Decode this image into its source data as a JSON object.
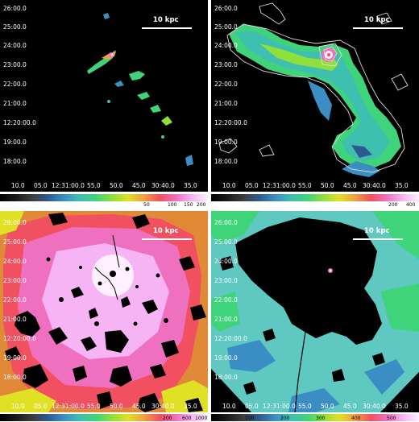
{
  "panels": [
    {
      "id": "tl",
      "scale_label": "10 kpc",
      "y_ticks": [
        "26:00.0",
        "25:00.0",
        "24:00.0",
        "23:00.0",
        "22:00.0",
        "21:00.0",
        "12:20:00.0",
        "19:00.0",
        "18:00.0"
      ],
      "x_ticks": [
        "10.0",
        "05.0",
        "12:31:00.0",
        "55.0",
        "50.0",
        "45.0",
        "30:40.0",
        "35.0"
      ],
      "colorbar_ticks": [
        "50",
        "100",
        "150",
        "200"
      ],
      "colorbar_colors": [
        "#000000",
        "#1a1a1a",
        "#3c3c3c",
        "#2f5a90",
        "#3b8ec4",
        "#3fbfb0",
        "#3fd47a",
        "#8fe03a",
        "#e0e024",
        "#f0a040",
        "#f05060",
        "#f070c0",
        "#f6b4f4",
        "#fff0ff"
      ]
    },
    {
      "id": "tr",
      "scale_label": "10 kpc",
      "y_ticks": [
        "26:00.0",
        "25:00.0",
        "24:00.0",
        "23:00.0",
        "22:00.0",
        "21:00.0",
        "12:20:00.0",
        "19:00.0",
        "18:00.0"
      ],
      "x_ticks": [
        "10.0",
        "05.0",
        "12:31:00.0",
        "55.0",
        "50.0",
        "45.0",
        "30:40.0",
        "35.0"
      ],
      "colorbar_ticks": [
        "200",
        "400"
      ],
      "colorbar_colors": [
        "#000000",
        "#1a1a1a",
        "#3c3c3c",
        "#2f5a90",
        "#3b8ec4",
        "#3fbfb0",
        "#3fd47a",
        "#8fe03a",
        "#e0e024",
        "#f0a040",
        "#f05060",
        "#f070c0",
        "#f6b4f4",
        "#fff0ff"
      ]
    },
    {
      "id": "bl",
      "scale_label": "10 kpc",
      "y_ticks": [
        "26:00.0",
        "25:00.0",
        "24:00.0",
        "23:00.0",
        "22:00.0",
        "21:00.0",
        "12:20:00.0",
        "19:00.0",
        "18:00.0"
      ],
      "x_ticks": [
        "10.0",
        "05.0",
        "12:31:00.0",
        "55.0",
        "50.0",
        "45.0",
        "30:40.0",
        "35.0"
      ],
      "colorbar_ticks": [
        "200",
        "600",
        "1000"
      ],
      "colorbar_colors": [
        "#000000",
        "#1a1a1a",
        "#3c3c3c",
        "#2f5a90",
        "#3b8ec4",
        "#3fbfb0",
        "#3fd47a",
        "#8fe03a",
        "#e0e024",
        "#f0a040",
        "#f05060",
        "#f070c0",
        "#f6b4f4",
        "#fff0ff"
      ]
    },
    {
      "id": "br",
      "scale_label": "10 kpc",
      "y_ticks": [
        "26:00.0",
        "25:00.0",
        "24:00.0",
        "23:00.0",
        "22:00.0",
        "21:00.0",
        "12:20:00.0",
        "19:00.0",
        "18:00.0"
      ],
      "x_ticks": [
        "10.0",
        "05.0",
        "12:31:00.0",
        "55.0",
        "50.0",
        "45.0",
        "30:40.0",
        "35.0"
      ],
      "colorbar_ticks": [
        "1",
        "100",
        "200",
        "300",
        "400",
        "500"
      ],
      "colorbar_colors": [
        "#000000",
        "#1a1a1a",
        "#3c3c3c",
        "#2f5a90",
        "#3b8ec4",
        "#3fbfb0",
        "#3fd47a",
        "#8fe03a",
        "#e0e024",
        "#f0a040",
        "#f05060",
        "#f070c0",
        "#f6b4f4",
        "#fff0ff"
      ]
    }
  ],
  "colors": {
    "background": "#000000",
    "low": "#2f5a90",
    "mid_green": "#3fd47a",
    "yellow": "#e0e024",
    "orange": "#f0a040",
    "pink": "#f070c0",
    "white_peak": "#fff0ff",
    "cyan": "#5fc8c0"
  }
}
